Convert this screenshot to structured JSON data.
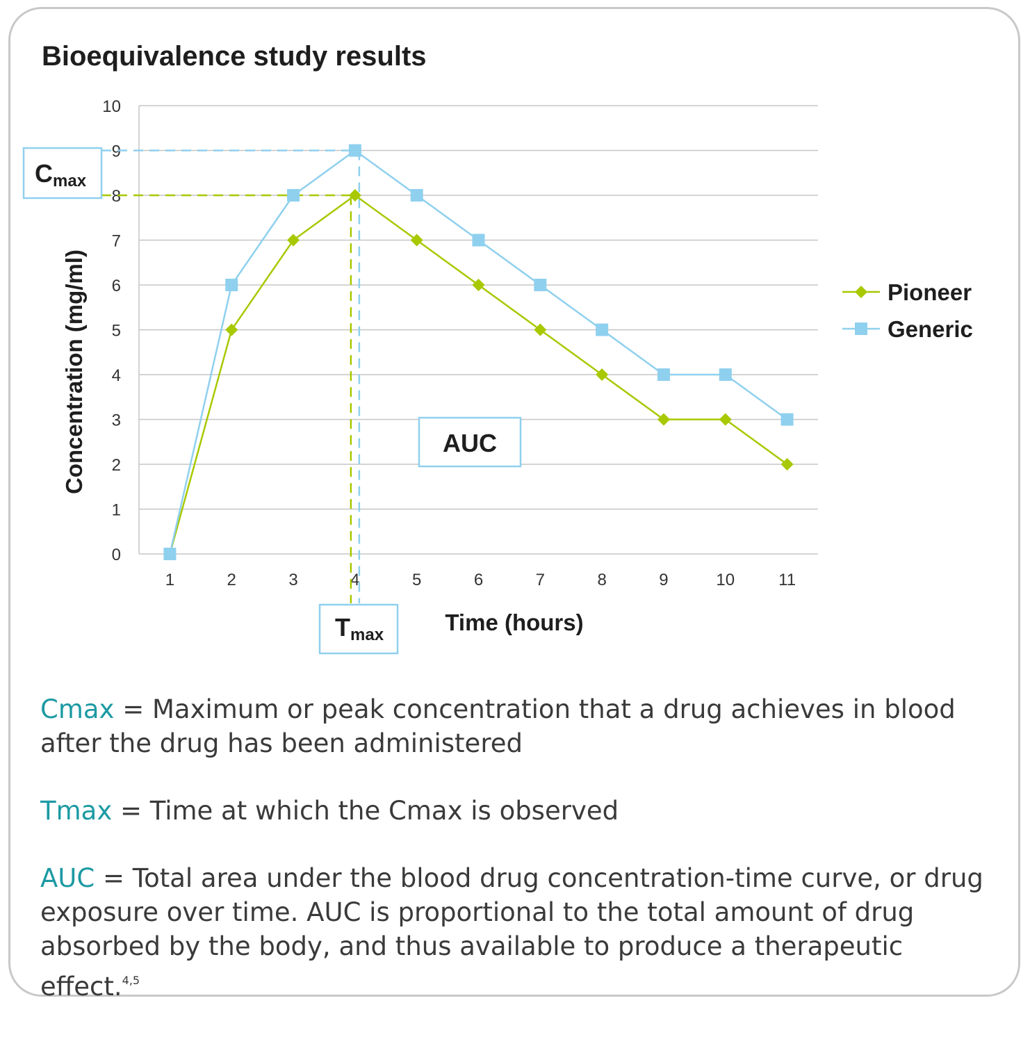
{
  "title": "Bioequivalence study results",
  "chart_data": {
    "type": "line",
    "x": [
      1,
      2,
      3,
      4,
      5,
      6,
      7,
      8,
      9,
      10,
      11
    ],
    "series": [
      {
        "name": "Pioneer",
        "values": [
          0,
          5,
          7,
          8,
          7,
          6,
          5,
          4,
          3,
          3,
          2
        ],
        "color": "#a8c800",
        "marker": "diamond"
      },
      {
        "name": "Generic",
        "values": [
          0,
          6,
          8,
          9,
          8,
          7,
          6,
          5,
          4,
          4,
          3
        ],
        "color": "#8fd0ee",
        "marker": "square"
      }
    ],
    "yticks": [
      "0",
      "1",
      "2",
      "3",
      "4",
      "5",
      "6",
      "7",
      "8",
      "9",
      "10"
    ],
    "xticks": [
      "1",
      "2",
      "3",
      "4",
      "5",
      "6",
      "7",
      "8",
      "9",
      "10",
      "11"
    ],
    "xlabel": "Time (hours)",
    "ylabel": "Concentration (mg/ml)",
    "ylim": [
      0,
      10
    ],
    "grid": true,
    "legend": "right",
    "annotations": {
      "cmax": {
        "main": "C",
        "sub": "max"
      },
      "tmax": {
        "main": "T",
        "sub": "max"
      },
      "auc": "AUC"
    }
  },
  "definitions": [
    {
      "term": "Cmax",
      "text": " = Maximum or peak concentration that a drug achieves in blood after the drug has been administered"
    },
    {
      "term": "Tmax",
      "text_before": " = Time at which the C",
      "inline_sub": "max",
      "text_after": " is observed"
    },
    {
      "term": "AUC",
      "text": " = Total area under the blood drug concentration-time curve, or drug exposure over time. AUC is proportional to the total amount of drug absorbed by the body, and thus available to produce a therapeutic effect.",
      "superscript": "4,5"
    }
  ]
}
